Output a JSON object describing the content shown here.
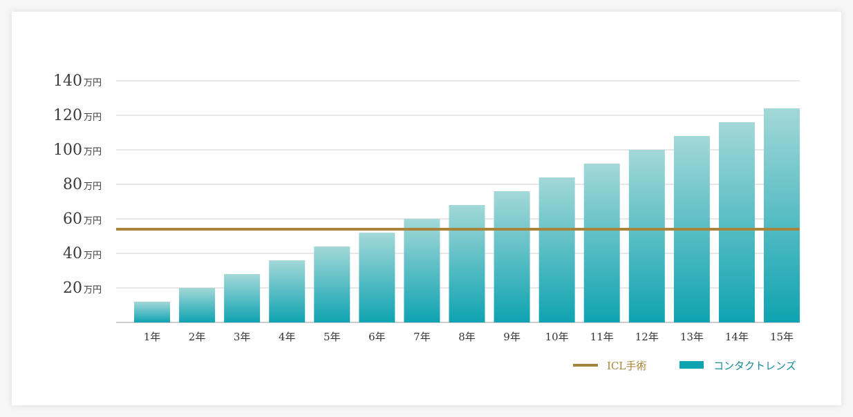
{
  "colors": {
    "card_bg": "#ffffff",
    "grid": "#cfcfcf",
    "axis": "#9a9a9a",
    "bar_top": "#a3d8d8",
    "bar_bottom": "#0fa3b1",
    "icl_line": "#a8843a",
    "legend_contact_text": "#158a98",
    "legend_icl_text": "#a8843a",
    "legend_contact_swatch": "#0fa3b1"
  },
  "chart_data": {
    "type": "bar",
    "title": "",
    "xlabel": "",
    "ylabel": "",
    "ylim": [
      0,
      140
    ],
    "yticks": [
      20,
      40,
      60,
      80,
      100,
      120,
      140
    ],
    "ytick_unit": "万円",
    "categories": [
      "1年",
      "2年",
      "3年",
      "4年",
      "5年",
      "6年",
      "7年",
      "8年",
      "9年",
      "10年",
      "11年",
      "12年",
      "13年",
      "14年",
      "15年"
    ],
    "series": [
      {
        "name": "コンタクトレンズ",
        "type": "bar",
        "values": [
          12,
          20,
          28,
          36,
          44,
          52,
          60,
          68,
          76,
          84,
          92,
          100,
          108,
          116,
          124
        ]
      },
      {
        "name": "ICL手術",
        "type": "hline",
        "value": 54
      }
    ],
    "legend": {
      "placement": "bottom-right",
      "items": [
        {
          "label": "ICL手術",
          "kind": "line"
        },
        {
          "label": "コンタクトレンズ",
          "kind": "bar"
        }
      ]
    },
    "grid": true
  }
}
